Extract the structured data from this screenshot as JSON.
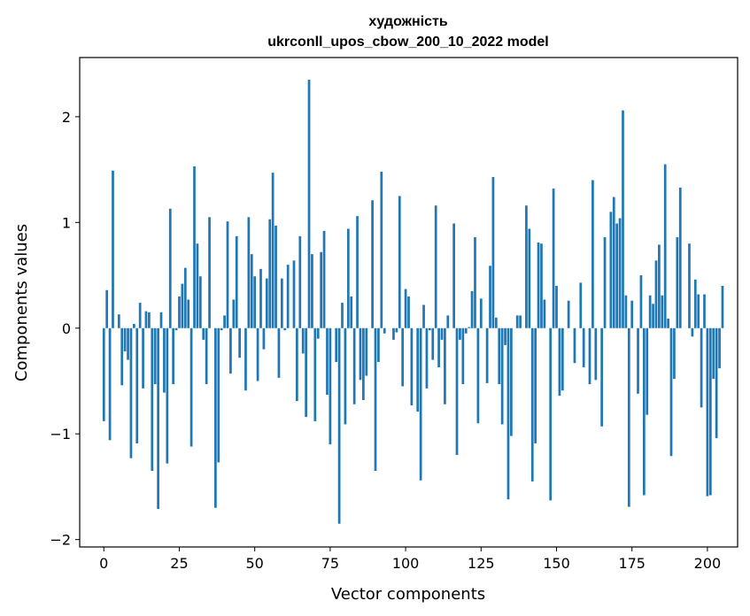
{
  "chart_data": {
    "type": "bar",
    "title": "художність",
    "subtitle": "ukrconll_upos_cbow_200_10_2022 model",
    "xlabel": "Vector components",
    "ylabel": "Components values",
    "xlim": [
      -8,
      210
    ],
    "ylim": [
      -2.07,
      2.56
    ],
    "xticks": [
      0,
      25,
      50,
      75,
      100,
      125,
      150,
      175,
      200
    ],
    "yticks": [
      -2,
      -1,
      0,
      1,
      2
    ],
    "xtick_labels": [
      "0",
      "25",
      "50",
      "75",
      "100",
      "125",
      "150",
      "175",
      "200"
    ],
    "ytick_labels": [
      "−2",
      "−1",
      "0",
      "1",
      "2"
    ],
    "grid": false,
    "bar_color": "#1f77b4",
    "values": [
      -0.88,
      0.36,
      -1.06,
      1.49,
      0.0,
      0.13,
      -0.54,
      -0.22,
      -0.3,
      -1.23,
      0.04,
      -1.09,
      0.24,
      -0.57,
      0.16,
      0.15,
      -1.35,
      -0.53,
      -1.71,
      0.15,
      -0.61,
      -1.28,
      1.13,
      -0.53,
      -0.02,
      0.3,
      0.42,
      0.57,
      0.27,
      -1.12,
      1.53,
      0.8,
      0.49,
      -0.11,
      -0.53,
      1.05,
      0.0,
      -1.7,
      -1.27,
      -0.02,
      0.12,
      1.01,
      -0.43,
      0.27,
      0.87,
      -0.28,
      0.0,
      -0.59,
      1.05,
      0.7,
      0.49,
      -0.5,
      0.56,
      -0.2,
      0.47,
      1.03,
      1.47,
      0.97,
      -0.47,
      0.47,
      -0.02,
      0.6,
      0.0,
      0.64,
      -0.69,
      0.87,
      -0.24,
      -0.84,
      2.35,
      0.7,
      -0.88,
      -0.1,
      0.72,
      0.92,
      -0.63,
      -1.1,
      0.0,
      -0.32,
      -1.85,
      0.24,
      -0.91,
      0.94,
      0.3,
      -0.72,
      1.06,
      -0.49,
      -0.68,
      -0.45,
      0.0,
      1.21,
      -1.35,
      -0.32,
      1.48,
      -0.05,
      0.0,
      0.0,
      -0.11,
      -0.04,
      1.25,
      -0.55,
      0.37,
      0.3,
      -0.73,
      0.0,
      -0.79,
      -1.44,
      0.22,
      -0.57,
      -0.02,
      -0.3,
      1.16,
      -0.37,
      -0.11,
      -0.72,
      0.12,
      0.0,
      0.99,
      -1.2,
      -0.11,
      -0.53,
      -0.05,
      0.01,
      0.35,
      0.86,
      -0.9,
      0.28,
      0.0,
      -0.52,
      0.59,
      1.43,
      0.1,
      -0.53,
      -0.91,
      -0.16,
      -1.62,
      -1.02,
      0.0,
      0.12,
      0.12,
      0.0,
      1.16,
      0.94,
      -1.45,
      -1.09,
      0.81,
      0.8,
      0.27,
      0.0,
      -1.63,
      1.32,
      0.4,
      -0.64,
      -0.59,
      0.0,
      0.26,
      0.0,
      -0.33,
      0.0,
      0.43,
      -0.37,
      0.0,
      -0.53,
      1.4,
      -0.49,
      0.0,
      -0.93,
      0.86,
      0.0,
      1.1,
      1.24,
      0.99,
      1.04,
      2.06,
      0.31,
      -1.69,
      0.26,
      0.0,
      -0.62,
      0.5,
      -1.58,
      -0.82,
      0.31,
      0.23,
      0.64,
      0.79,
      0.31,
      1.55,
      0.09,
      -1.21,
      -0.48,
      0.86,
      1.33,
      0.0,
      0.0,
      0.8,
      -0.08,
      0.46,
      0.32,
      -0.75,
      0.32,
      -1.59,
      -1.58,
      -0.48,
      -1.04,
      -0.38,
      0.4
    ]
  }
}
